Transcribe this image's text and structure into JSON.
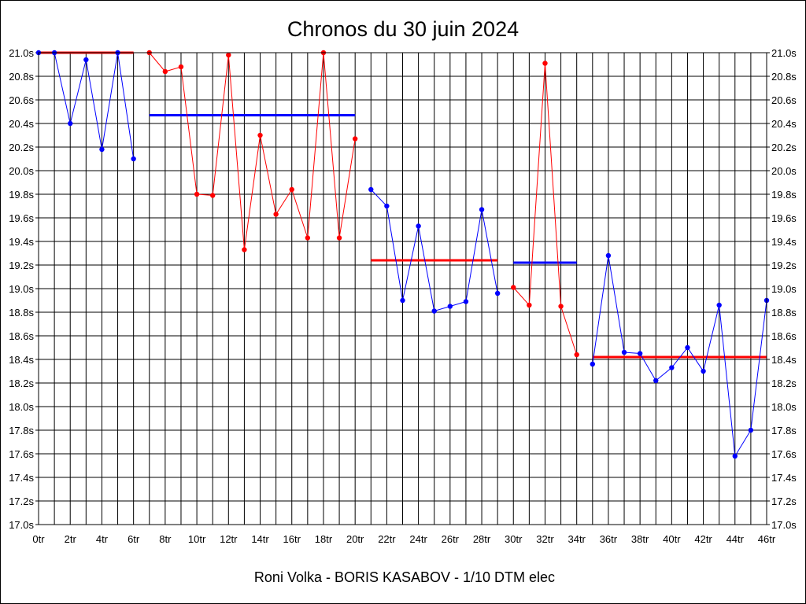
{
  "chart_data": {
    "type": "line",
    "title": "Chronos du 30 juin 2024",
    "footer": "Roni Volka - BORIS KASABOV - 1/10 DTM elec",
    "xlim": [
      0,
      46
    ],
    "ylim": [
      17.0,
      21.0
    ],
    "x_tick_step": 2,
    "x_tick_suffix": "tr",
    "y_tick_step": 0.2,
    "y_tick_suffix": "s",
    "grid": true,
    "colors": {
      "blue": "#0000ff",
      "red": "#ff0000",
      "grid": "#000000"
    },
    "series": [
      {
        "color": "#0000ff",
        "points": [
          [
            0,
            21.0
          ],
          [
            1,
            21.0
          ],
          [
            2,
            20.4
          ],
          [
            3,
            20.94
          ],
          [
            4,
            20.18
          ],
          [
            5,
            21.0
          ],
          [
            6,
            20.1
          ]
        ]
      },
      {
        "color": "#ff0000",
        "points": [
          [
            7,
            21.0
          ],
          [
            8,
            20.84
          ],
          [
            9,
            20.88
          ],
          [
            10,
            19.8
          ],
          [
            11,
            19.79
          ],
          [
            12,
            20.98
          ],
          [
            13,
            19.33
          ],
          [
            14,
            20.3
          ],
          [
            15,
            19.63
          ],
          [
            16,
            19.84
          ],
          [
            17,
            19.43
          ],
          [
            18,
            21.0
          ],
          [
            19,
            19.43
          ],
          [
            20,
            20.27
          ]
        ]
      },
      {
        "color": "#0000ff",
        "points": [
          [
            21,
            19.84
          ],
          [
            22,
            19.7
          ],
          [
            23,
            18.9
          ],
          [
            24,
            19.53
          ],
          [
            25,
            18.81
          ],
          [
            26,
            18.85
          ],
          [
            27,
            18.89
          ],
          [
            28,
            19.67
          ],
          [
            29,
            18.96
          ]
        ]
      },
      {
        "color": "#ff0000",
        "points": [
          [
            30,
            19.01
          ],
          [
            31,
            18.86
          ],
          [
            32,
            20.91
          ],
          [
            33,
            18.85
          ],
          [
            34,
            18.44
          ]
        ]
      },
      {
        "color": "#0000ff",
        "points": [
          [
            35,
            18.36
          ],
          [
            36,
            19.28
          ],
          [
            37,
            18.46
          ],
          [
            38,
            18.45
          ],
          [
            39,
            18.22
          ],
          [
            40,
            18.33
          ],
          [
            41,
            18.5
          ],
          [
            42,
            18.3
          ],
          [
            43,
            18.86
          ],
          [
            44,
            17.58
          ],
          [
            45,
            17.8
          ],
          [
            46,
            18.9
          ]
        ]
      }
    ],
    "averages": [
      {
        "color": "#ff0000",
        "from": 0,
        "to": 6,
        "value": 21.0
      },
      {
        "color": "#0000ff",
        "from": 7,
        "to": 20,
        "value": 20.47
      },
      {
        "color": "#ff0000",
        "from": 21,
        "to": 29,
        "value": 19.24
      },
      {
        "color": "#0000ff",
        "from": 30,
        "to": 34,
        "value": 19.22
      },
      {
        "color": "#ff0000",
        "from": 35,
        "to": 46,
        "value": 18.42
      }
    ]
  }
}
